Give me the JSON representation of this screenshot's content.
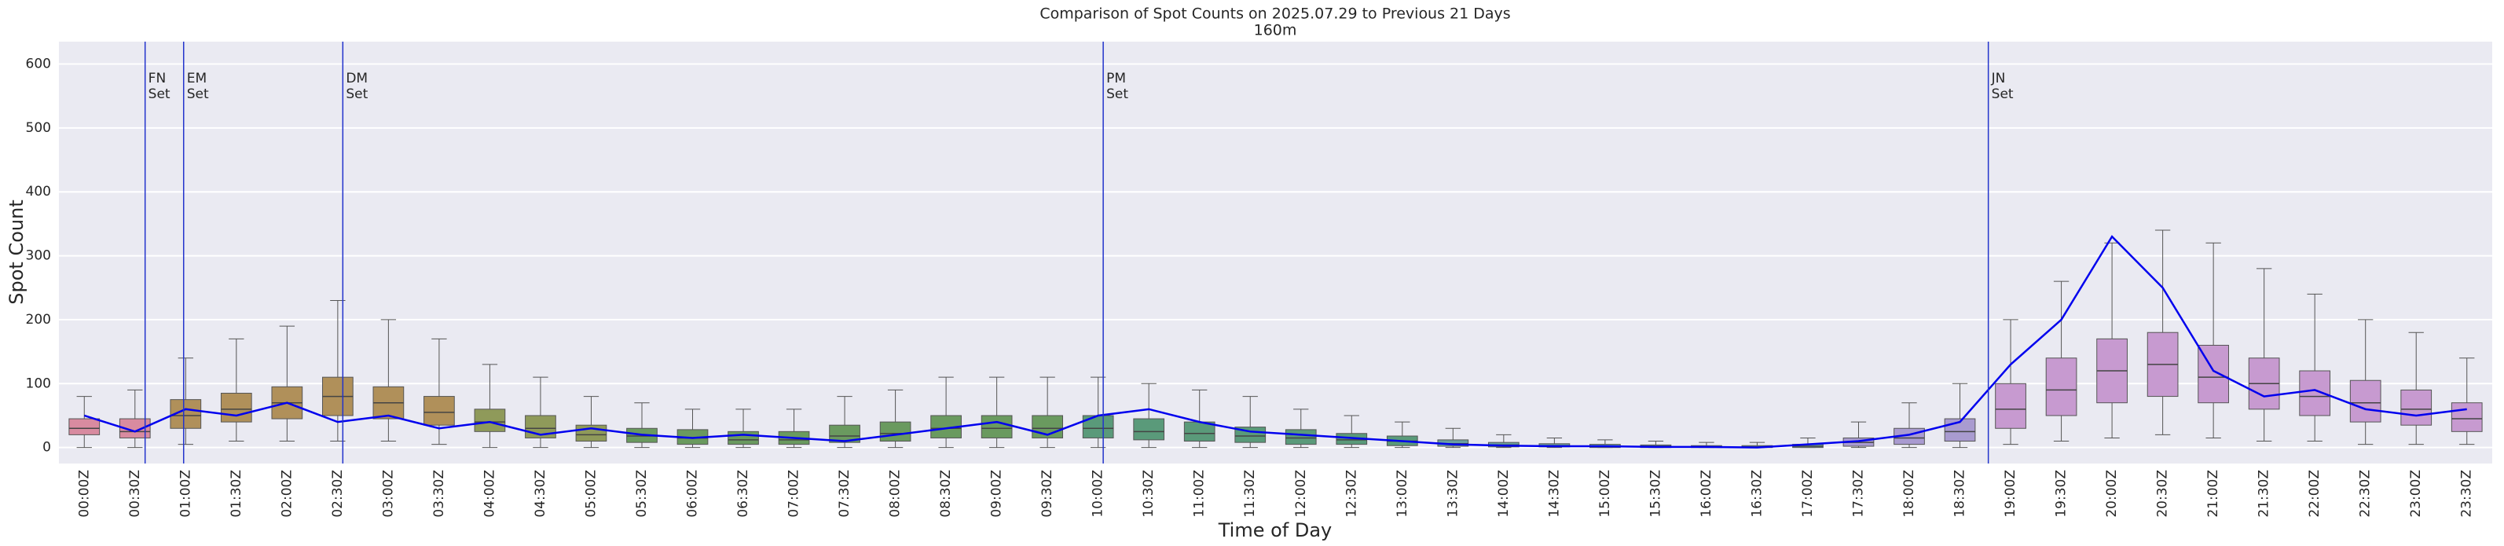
{
  "chart_data": {
    "type": "box",
    "title": "Comparison of Spot Counts on 2025.07.29 to Previous 21 Days",
    "subtitle": "160m",
    "xlabel": "Time of Day",
    "ylabel": "Spot Count",
    "categories": [
      "00:00Z",
      "00:30Z",
      "01:00Z",
      "01:30Z",
      "02:00Z",
      "02:30Z",
      "03:00Z",
      "03:30Z",
      "04:00Z",
      "04:30Z",
      "05:00Z",
      "05:30Z",
      "06:00Z",
      "06:30Z",
      "07:00Z",
      "07:30Z",
      "08:00Z",
      "08:30Z",
      "09:00Z",
      "09:30Z",
      "10:00Z",
      "10:30Z",
      "11:00Z",
      "11:30Z",
      "12:00Z",
      "12:30Z",
      "13:00Z",
      "13:30Z",
      "14:00Z",
      "14:30Z",
      "15:00Z",
      "15:30Z",
      "16:00Z",
      "16:30Z",
      "17:00Z",
      "17:30Z",
      "18:00Z",
      "18:30Z",
      "19:00Z",
      "19:30Z",
      "20:00Z",
      "20:30Z",
      "21:00Z",
      "21:30Z",
      "22:00Z",
      "22:30Z",
      "23:00Z",
      "23:30Z"
    ],
    "boxes": {
      "whislo": [
        0,
        0,
        5,
        10,
        10,
        10,
        10,
        5,
        0,
        0,
        0,
        0,
        0,
        0,
        0,
        0,
        0,
        0,
        0,
        0,
        0,
        0,
        0,
        0,
        0,
        0,
        0,
        0,
        0,
        0,
        0,
        0,
        0,
        0,
        0,
        0,
        0,
        0,
        5,
        10,
        15,
        20,
        15,
        10,
        10,
        5,
        5,
        5
      ],
      "q1": [
        20,
        15,
        30,
        40,
        45,
        50,
        45,
        35,
        25,
        15,
        10,
        8,
        5,
        5,
        5,
        8,
        10,
        15,
        15,
        15,
        15,
        12,
        10,
        8,
        5,
        5,
        3,
        2,
        1,
        1,
        0,
        0,
        0,
        0,
        0,
        2,
        5,
        10,
        30,
        50,
        70,
        80,
        70,
        60,
        50,
        40,
        35,
        25
      ],
      "med": [
        30,
        25,
        50,
        60,
        70,
        80,
        70,
        55,
        40,
        30,
        20,
        18,
        15,
        12,
        12,
        18,
        22,
        30,
        30,
        30,
        30,
        25,
        22,
        18,
        15,
        12,
        10,
        6,
        4,
        3,
        2,
        2,
        1,
        1,
        2,
        8,
        15,
        25,
        60,
        90,
        120,
        130,
        110,
        100,
        80,
        70,
        60,
        45
      ],
      "q3": [
        45,
        45,
        75,
        85,
        95,
        110,
        95,
        80,
        60,
        50,
        35,
        30,
        28,
        25,
        25,
        35,
        40,
        50,
        50,
        50,
        50,
        45,
        40,
        32,
        28,
        22,
        18,
        12,
        8,
        6,
        5,
        4,
        3,
        3,
        5,
        15,
        30,
        45,
        100,
        140,
        170,
        180,
        160,
        140,
        120,
        105,
        90,
        70
      ],
      "whishi": [
        80,
        90,
        140,
        170,
        190,
        230,
        200,
        170,
        130,
        110,
        80,
        70,
        60,
        60,
        60,
        80,
        90,
        110,
        110,
        110,
        110,
        100,
        90,
        80,
        60,
        50,
        40,
        30,
        20,
        15,
        12,
        10,
        8,
        8,
        15,
        40,
        70,
        100,
        200,
        260,
        320,
        340,
        320,
        280,
        240,
        200,
        180,
        140
      ],
      "colors": [
        "#d88ba0",
        "#d88ba0",
        "#b0905a",
        "#b0905a",
        "#b0905a",
        "#b0905a",
        "#b0905a",
        "#b0905a",
        "#8f9a5a",
        "#8f9a5a",
        "#8f9a5a",
        "#6a9a5f",
        "#6a9a5f",
        "#6a9a5f",
        "#6a9a5f",
        "#6a9a5f",
        "#6a9a5f",
        "#6a9a5f",
        "#6a9a5f",
        "#6a9a5f",
        "#5a9a7a",
        "#5a9a7a",
        "#5a9a7a",
        "#5a9a7a",
        "#5a9a7a",
        "#5a9a7a",
        "#5a9a7a",
        "#6aa0a0",
        "#6aa0a0",
        "#6aa0a0",
        "#6aa0a0",
        "#6aa0a0",
        "#6aa0a0",
        "#6aa0a0",
        "#6aa0a0",
        "#a99bd0",
        "#a99bd0",
        "#a99bd0",
        "#c79ad0",
        "#c79ad0",
        "#c79ad0",
        "#c79ad0",
        "#c79ad0",
        "#c79ad0",
        "#c79ad0",
        "#c79ad0",
        "#c79ad0",
        "#c79ad0"
      ]
    },
    "line": {
      "color": "#0000ee",
      "values": [
        50,
        25,
        60,
        50,
        70,
        40,
        50,
        30,
        40,
        20,
        30,
        20,
        15,
        20,
        15,
        10,
        20,
        30,
        40,
        20,
        50,
        60,
        40,
        25,
        20,
        15,
        10,
        5,
        3,
        2,
        2,
        1,
        1,
        0,
        5,
        10,
        20,
        40,
        130,
        200,
        330,
        250,
        120,
        80,
        90,
        60,
        50,
        60
      ]
    },
    "annotations": [
      {
        "x": 0.6,
        "lines": [
          "FN",
          "Set"
        ]
      },
      {
        "x": 0.98,
        "lines": [
          "EM",
          "Set"
        ]
      },
      {
        "x": 2.55,
        "lines": [
          "DM",
          "Set"
        ]
      },
      {
        "x": 10.05,
        "lines": [
          "PM",
          "Set"
        ]
      },
      {
        "x": 18.78,
        "lines": [
          "JN",
          "Set"
        ]
      }
    ],
    "annotation_color": "#2233cc",
    "ylim": [
      -25,
      635
    ],
    "yticks": [
      0,
      100,
      200,
      300,
      400,
      500,
      600
    ],
    "grid": true
  }
}
